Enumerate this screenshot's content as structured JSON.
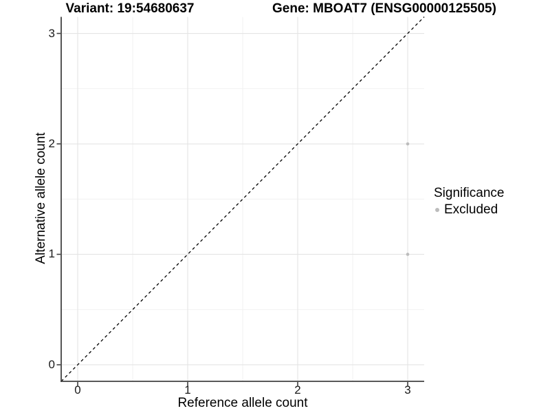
{
  "chart_data": {
    "type": "scatter",
    "titles": [
      "Variant: 19:54680637",
      "Gene: MBOAT7 (ENSG00000125505)"
    ],
    "xlabel": "Reference allele count",
    "ylabel": "Alternative allele count",
    "x_ticks": [
      0,
      1,
      2,
      3
    ],
    "y_ticks": [
      0,
      1,
      2,
      3
    ],
    "xlim": [
      -0.15,
      3.15
    ],
    "ylim": [
      -0.15,
      3.15
    ],
    "grid": "major+minor",
    "axis_lines": "left+bottom",
    "legend": {
      "title": "Significance",
      "position": "right",
      "items": [
        {
          "label": "Excluded",
          "color": "#bcbcbc",
          "marker": "circle"
        }
      ]
    },
    "series": [
      {
        "name": "Excluded",
        "color": "#bcbcbc",
        "points": [
          {
            "x": 3,
            "y": 2
          },
          {
            "x": 3,
            "y": 1
          }
        ]
      }
    ],
    "reference_line": {
      "type": "identity",
      "slope": 1,
      "intercept": 0,
      "style": "dashed",
      "color": "#000000"
    }
  },
  "colors": {
    "background": "#ffffff",
    "grid_major": "#e4e4e4",
    "grid_minor": "#f1f1f1",
    "axis_line": "#404040",
    "tick_mark": "#404040",
    "text": "#000000"
  }
}
